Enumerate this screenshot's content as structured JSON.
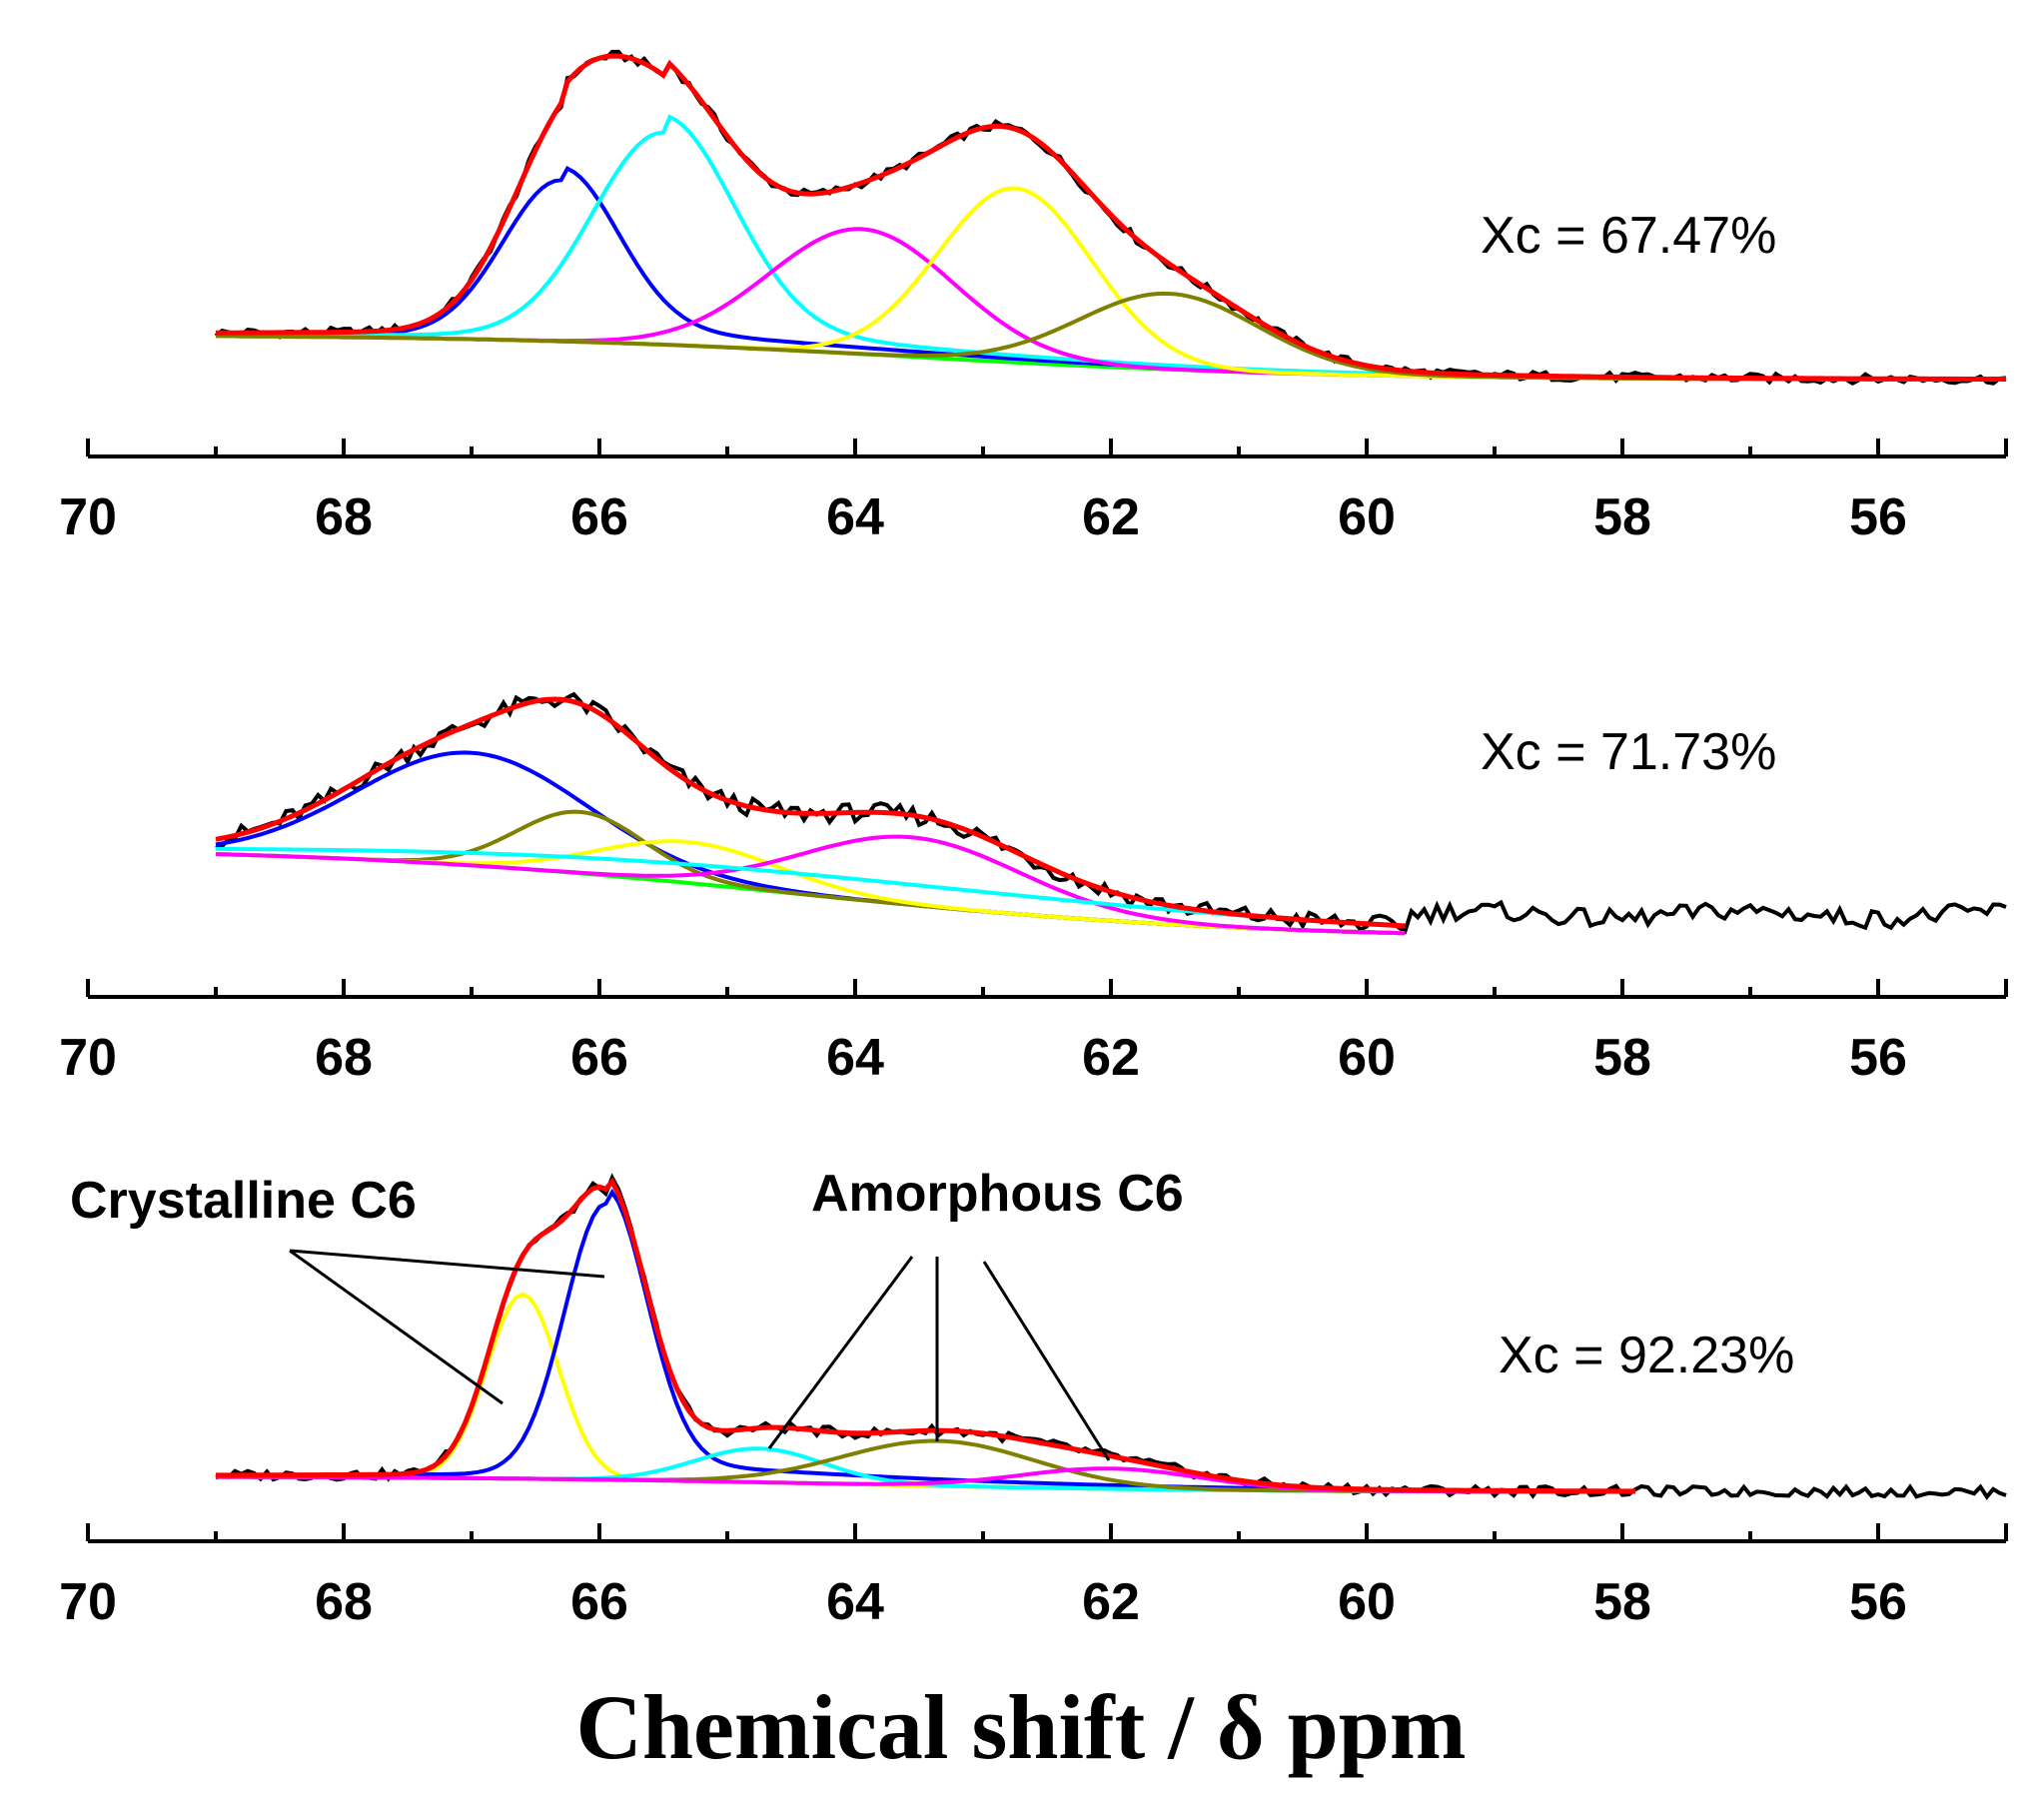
{
  "chart_data": [
    {
      "type": "line",
      "annotation": "Xc = 67.47%",
      "xlim": [
        70,
        55
      ],
      "x_ticks": [
        "70",
        "68",
        "66",
        "64",
        "62",
        "60",
        "58",
        "56"
      ],
      "peaks": [
        {
          "color": "#0000ff",
          "center": 66.3,
          "height": 0.76,
          "width": 0.45,
          "shape": "gauss",
          "tail": 0.12
        },
        {
          "color": "#00ffff",
          "center": 65.5,
          "height": 1.0,
          "width": 0.55,
          "shape": "gauss",
          "tail": 0.12
        },
        {
          "color": "#ff00ff",
          "center": 63.95,
          "height": 0.61,
          "width": 0.72,
          "shape": "gauss"
        },
        {
          "color": "#ffff00",
          "center": 62.75,
          "height": 0.85,
          "width": 0.6,
          "shape": "gauss"
        },
        {
          "color": "#808000",
          "center": 61.55,
          "height": 0.37,
          "width": 0.7,
          "shape": "gauss"
        }
      ],
      "baseline": {
        "color": "#00ff00",
        "from": 0.0,
        "to": -0.22,
        "mid": 63.5,
        "spread": 1.6
      },
      "fit": {
        "color": "#ff0000"
      },
      "experimental": {
        "color": "#000000"
      }
    },
    {
      "type": "line",
      "annotation": "Xc = 71.73%",
      "xlim": [
        70,
        55
      ],
      "x_ticks": [
        "70",
        "68",
        "66",
        "64",
        "62",
        "60",
        "58",
        "56"
      ],
      "peaks": [
        {
          "color": "#0000ff",
          "center": 67.0,
          "height": 0.55,
          "width": 0.9,
          "shape": "gauss"
        },
        {
          "color": "#808000",
          "center": 66.15,
          "height": 0.3,
          "width": 0.5,
          "shape": "gauss"
        },
        {
          "color": "#ffff00",
          "center": 65.3,
          "height": 0.2,
          "width": 0.7,
          "shape": "gauss"
        },
        {
          "color": "#ff00ff",
          "center": 63.55,
          "height": 0.33,
          "width": 0.85,
          "shape": "gauss"
        },
        {
          "color": "#00ffff",
          "center": 64.0,
          "height": 0.1,
          "width": 3.0,
          "shape": "gauss"
        }
      ],
      "baseline": {
        "color": "#00ff00",
        "from": 0.0,
        "to": -0.45,
        "mid": 64.5,
        "spread": 1.8
      },
      "fit_range": [
        69.0,
        59.7
      ],
      "fit": {
        "color": "#ff0000"
      },
      "experimental": {
        "color": "#000000"
      }
    },
    {
      "type": "line",
      "annotation": "Xc = 92.23%",
      "xlim": [
        70,
        55
      ],
      "x_ticks": [
        "70",
        "68",
        "66",
        "64",
        "62",
        "60",
        "58",
        "56"
      ],
      "labels": {
        "crystalline": "Crystalline C6",
        "amorphous": "Amorphous C6"
      },
      "peaks": [
        {
          "color": "#ffff00",
          "center": 66.6,
          "height": 0.82,
          "width": 0.28,
          "shape": "gauss"
        },
        {
          "color": "#0000ff",
          "center": 65.95,
          "height": 1.2,
          "width": 0.32,
          "shape": "gauss",
          "tail": 0.08
        },
        {
          "color": "#00ffff",
          "center": 64.75,
          "height": 0.15,
          "width": 0.5,
          "shape": "gauss"
        },
        {
          "color": "#808000",
          "center": 63.35,
          "height": 0.2,
          "width": 0.75,
          "shape": "gauss"
        },
        {
          "color": "#ff00ff",
          "center": 62.0,
          "height": 0.09,
          "width": 0.7,
          "shape": "gauss"
        }
      ],
      "baseline": {
        "color": "#00ff00",
        "from": 0.0,
        "to": -0.07,
        "mid": 64.0,
        "spread": 1.5
      },
      "fit_range": [
        69.0,
        57.9
      ],
      "fit": {
        "color": "#ff0000"
      },
      "experimental": {
        "color": "#000000"
      }
    }
  ],
  "xlabel": "Chemical shift /  δ ppm"
}
